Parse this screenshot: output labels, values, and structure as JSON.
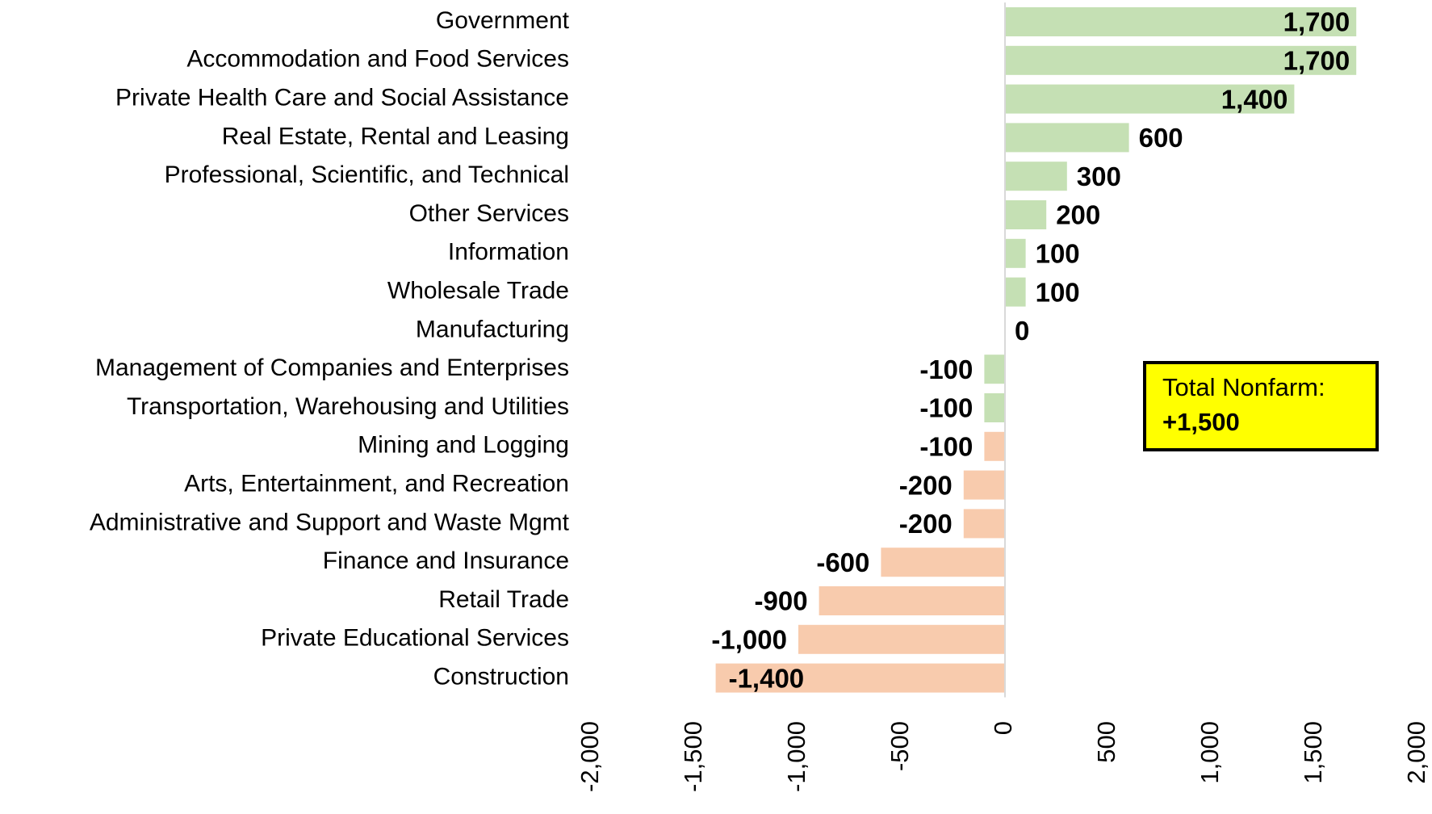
{
  "chart_data": {
    "type": "hbar",
    "categories": [
      "Government",
      "Accommodation and Food Services",
      "Private Health Care and Social Assistance",
      "Real Estate, Rental and Leasing",
      "Professional, Scientific, and Technical",
      "Other Services",
      "Information",
      "Wholesale Trade",
      "Manufacturing",
      "Management of Companies and Enterprises",
      "Transportation, Warehousing and Utilities",
      "Mining and Logging",
      "Arts, Entertainment, and Recreation",
      "Administrative and Support and Waste Mgmt",
      "Finance and Insurance",
      "Retail Trade",
      "Private Educational Services",
      "Construction"
    ],
    "values": [
      1700,
      1700,
      1400,
      600,
      300,
      200,
      100,
      100,
      0,
      -100,
      -100,
      -100,
      -200,
      -200,
      -600,
      -900,
      -1000,
      -1400
    ],
    "value_labels": [
      "1,700",
      "1,700",
      "1,400",
      "600",
      "300",
      "200",
      "100",
      "100",
      "0",
      "-100",
      "-100",
      "-100",
      "-200",
      "-200",
      "-600",
      "-900",
      "-1,000",
      "-1,400"
    ],
    "colors": [
      "#c5e0b4",
      "#c5e0b4",
      "#c5e0b4",
      "#c5e0b4",
      "#c5e0b4",
      "#c5e0b4",
      "#c5e0b4",
      "#c5e0b4",
      "#c5e0b4",
      "#c5e0b4",
      "#c5e0b4",
      "#f8cbad",
      "#f8cbad",
      "#f8cbad",
      "#f8cbad",
      "#f8cbad",
      "#f8cbad",
      "#f8cbad"
    ],
    "xlim": [
      -2000,
      2000
    ],
    "xticks": [
      {
        "value": -2000,
        "label": "-2,000"
      },
      {
        "value": -1500,
        "label": "-1,500"
      },
      {
        "value": -1000,
        "label": "-1,000"
      },
      -500,
      0,
      500,
      {
        "value": 1000,
        "label": "1,000"
      },
      {
        "value": 1500,
        "label": "1,500"
      },
      {
        "value": 2000,
        "label": "2,000"
      }
    ],
    "grid": false,
    "annotation": {
      "title": "Total Nonfarm:",
      "text": "+1,500"
    }
  }
}
